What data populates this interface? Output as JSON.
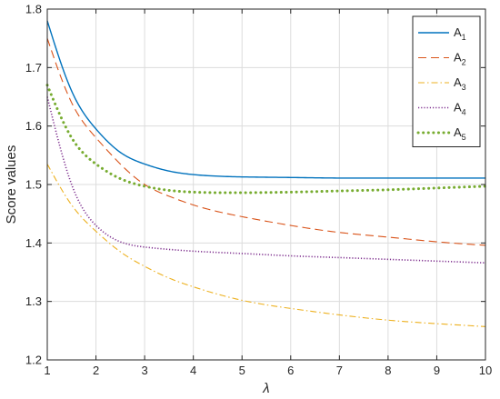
{
  "chart_data": {
    "type": "line",
    "xlabel": "λ",
    "ylabel": "Score values",
    "xlim": [
      1,
      10
    ],
    "ylim": [
      1.2,
      1.8
    ],
    "x_ticks": [
      1,
      2,
      3,
      4,
      5,
      6,
      7,
      8,
      9,
      10
    ],
    "y_ticks": [
      1.2,
      1.3,
      1.4,
      1.5,
      1.6,
      1.7,
      1.8
    ],
    "x_tick_labels": [
      "1",
      "2",
      "3",
      "4",
      "5",
      "6",
      "7",
      "8",
      "9",
      "10"
    ],
    "y_tick_labels": [
      "1.2",
      "1.3",
      "1.4",
      "1.5",
      "1.6",
      "1.7",
      "1.8"
    ],
    "grid": true,
    "legend_position": "top-right",
    "x": [
      1,
      1.5,
      2,
      2.5,
      3,
      3.5,
      4,
      5,
      6,
      7,
      8,
      9,
      10
    ],
    "series": [
      {
        "name": "A",
        "subscript": "1",
        "color": "#0072BD",
        "style": "solid",
        "values": [
          1.78,
          1.66,
          1.595,
          1.555,
          1.535,
          1.523,
          1.517,
          1.513,
          1.512,
          1.511,
          1.511,
          1.511,
          1.511
        ]
      },
      {
        "name": "A",
        "subscript": "2",
        "color": "#D95319",
        "style": "dashed",
        "values": [
          1.75,
          1.64,
          1.58,
          1.535,
          1.5,
          1.48,
          1.465,
          1.445,
          1.43,
          1.418,
          1.41,
          1.402,
          1.396
        ]
      },
      {
        "name": "A",
        "subscript": "3",
        "color": "#EDB120",
        "style": "dashdot",
        "values": [
          1.535,
          1.465,
          1.42,
          1.385,
          1.36,
          1.34,
          1.325,
          1.302,
          1.288,
          1.277,
          1.268,
          1.262,
          1.257
        ]
      },
      {
        "name": "A",
        "subscript": "4",
        "color": "#7E2F8E",
        "style": "dotted",
        "values": [
          1.65,
          1.5,
          1.43,
          1.402,
          1.393,
          1.389,
          1.386,
          1.382,
          1.378,
          1.375,
          1.372,
          1.369,
          1.366
        ]
      },
      {
        "name": "A",
        "subscript": "5",
        "color": "#77AC30",
        "style": "dots",
        "values": [
          1.67,
          1.58,
          1.535,
          1.51,
          1.497,
          1.49,
          1.487,
          1.486,
          1.487,
          1.489,
          1.491,
          1.494,
          1.497
        ]
      }
    ]
  }
}
